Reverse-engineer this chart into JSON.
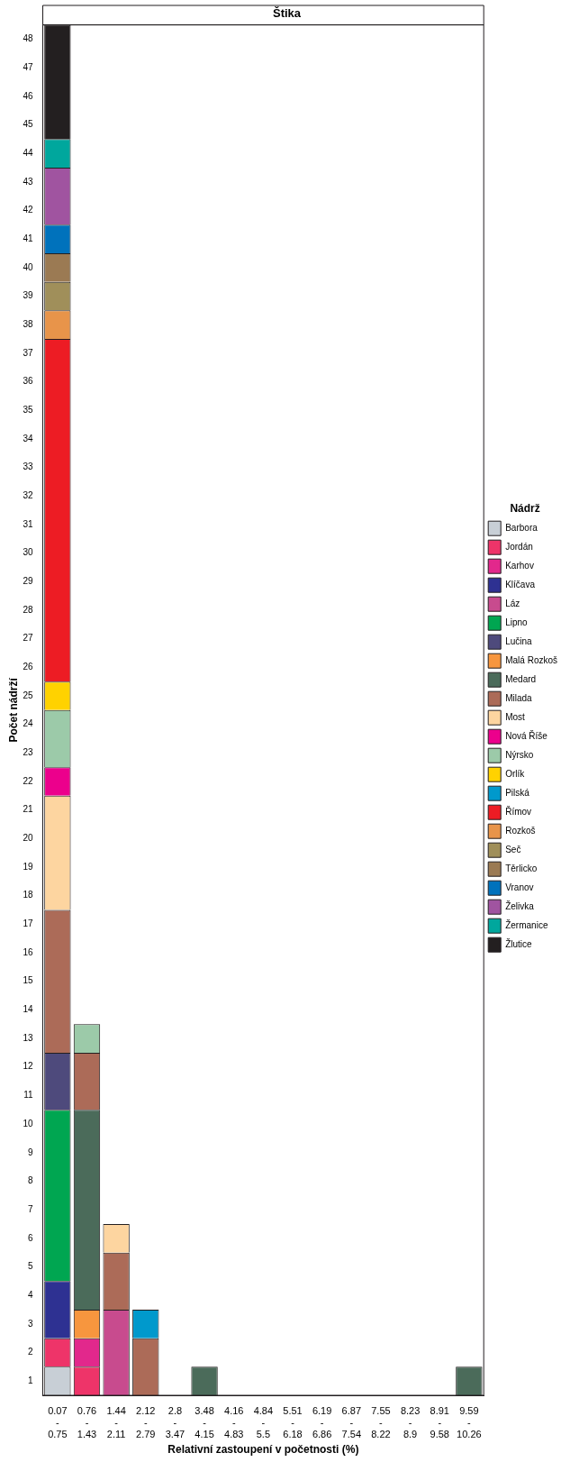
{
  "chart_data": {
    "type": "bar",
    "stacked": true,
    "title": "Štika",
    "xlabel": "Relativní zastoupení v početnosti (%)",
    "ylabel": "Počet nádrží",
    "legend_title": "Nádrž",
    "legend": "right",
    "grid": false,
    "categories": [
      "0.07 - 0.75",
      "0.76 - 1.43",
      "1.44 - 2.11",
      "2.12 - 2.79",
      "2.8 - 3.47",
      "3.48 - 4.15",
      "4.16 - 4.83",
      "4.84 - 5.5",
      "5.51 - 6.18",
      "6.19 - 6.86",
      "6.87 - 7.54",
      "7.55 - 8.22",
      "8.23 - 8.9",
      "8.91 - 9.58",
      "9.59 - 10.26"
    ],
    "ylim": [
      0,
      48
    ],
    "yticks": [
      {
        "value": 0.5,
        "label": "1"
      },
      {
        "value": 1.5,
        "label": "2"
      },
      {
        "value": 2.5,
        "label": "3"
      },
      {
        "value": 3.5,
        "label": "4"
      },
      {
        "value": 4.5,
        "label": "5"
      },
      {
        "value": 5.5,
        "label": "6"
      },
      {
        "value": 6.5,
        "label": "7"
      },
      {
        "value": 7.5,
        "label": "8"
      },
      {
        "value": 8.5,
        "label": "9"
      },
      {
        "value": 9.5,
        "label": "10"
      },
      {
        "value": 10.5,
        "label": "11"
      },
      {
        "value": 11.5,
        "label": "12"
      },
      {
        "value": 12.5,
        "label": "13"
      },
      {
        "value": 13.5,
        "label": "14"
      },
      {
        "value": 14.5,
        "label": "15"
      },
      {
        "value": 15.5,
        "label": "16"
      },
      {
        "value": 16.5,
        "label": "17"
      },
      {
        "value": 17.5,
        "label": "18"
      },
      {
        "value": 18.5,
        "label": "19"
      },
      {
        "value": 19.5,
        "label": "20"
      },
      {
        "value": 20.5,
        "label": "21"
      },
      {
        "value": 21.5,
        "label": "22"
      },
      {
        "value": 22.5,
        "label": "23"
      },
      {
        "value": 23.5,
        "label": "24"
      },
      {
        "value": 24.5,
        "label": "25"
      },
      {
        "value": 25.5,
        "label": "26"
      },
      {
        "value": 26.5,
        "label": "27"
      },
      {
        "value": 27.5,
        "label": "28"
      },
      {
        "value": 28.5,
        "label": "29"
      },
      {
        "value": 29.5,
        "label": "30"
      },
      {
        "value": 30.5,
        "label": "31"
      },
      {
        "value": 31.5,
        "label": "32"
      },
      {
        "value": 32.5,
        "label": "33"
      },
      {
        "value": 33.5,
        "label": "34"
      },
      {
        "value": 34.5,
        "label": "35"
      },
      {
        "value": 35.5,
        "label": "36"
      },
      {
        "value": 36.5,
        "label": "37"
      },
      {
        "value": 37.5,
        "label": "38"
      },
      {
        "value": 38.5,
        "label": "39"
      },
      {
        "value": 39.5,
        "label": "40"
      },
      {
        "value": 40.5,
        "label": "41"
      },
      {
        "value": 41.5,
        "label": "42"
      },
      {
        "value": 42.5,
        "label": "43"
      },
      {
        "value": 43.5,
        "label": "44"
      },
      {
        "value": 44.5,
        "label": "45"
      },
      {
        "value": 45.5,
        "label": "46"
      },
      {
        "value": 46.5,
        "label": "47"
      },
      {
        "value": 47.5,
        "label": "48"
      }
    ],
    "series": [
      {
        "name": "Barbora",
        "color": "#c8cfd6",
        "values": [
          1,
          null,
          null,
          null,
          null,
          null,
          null,
          null,
          null,
          null,
          null,
          null,
          null,
          null,
          null
        ]
      },
      {
        "name": "Jordán",
        "color": "#ee3469",
        "values": [
          1,
          1,
          null,
          null,
          null,
          null,
          null,
          null,
          null,
          null,
          null,
          null,
          null,
          null,
          null
        ]
      },
      {
        "name": "Karhov",
        "color": "#e2288c",
        "values": [
          null,
          1,
          null,
          null,
          null,
          null,
          null,
          null,
          null,
          null,
          null,
          null,
          null,
          null,
          null
        ]
      },
      {
        "name": "Klíčava",
        "color": "#2e3192",
        "values": [
          2,
          null,
          null,
          null,
          null,
          null,
          null,
          null,
          null,
          null,
          null,
          null,
          null,
          null,
          null
        ]
      },
      {
        "name": "Láz",
        "color": "#c84b8e",
        "values": [
          null,
          null,
          3,
          null,
          null,
          null,
          null,
          null,
          null,
          null,
          null,
          null,
          null,
          null,
          null
        ]
      },
      {
        "name": "Lipno",
        "color": "#00a651",
        "values": [
          6,
          null,
          null,
          null,
          null,
          null,
          null,
          null,
          null,
          null,
          null,
          null,
          null,
          null,
          null
        ]
      },
      {
        "name": "Lučina",
        "color": "#4e4a7c",
        "values": [
          2,
          null,
          null,
          null,
          null,
          null,
          null,
          null,
          null,
          null,
          null,
          null,
          null,
          null,
          null
        ]
      },
      {
        "name": "Malá Rozkoš",
        "color": "#f7963e",
        "values": [
          null,
          1,
          null,
          null,
          null,
          null,
          null,
          null,
          null,
          null,
          null,
          null,
          null,
          null,
          null
        ]
      },
      {
        "name": "Medard",
        "color": "#4b6b5a",
        "values": [
          null,
          7,
          null,
          null,
          null,
          1,
          null,
          null,
          null,
          null,
          null,
          null,
          null,
          null,
          1
        ]
      },
      {
        "name": "Milada",
        "color": "#ac6b58",
        "values": [
          5,
          2,
          2,
          2,
          null,
          null,
          null,
          null,
          null,
          null,
          null,
          null,
          null,
          null,
          null
        ]
      },
      {
        "name": "Most",
        "color": "#fdd5a0",
        "values": [
          4,
          null,
          1,
          null,
          null,
          null,
          null,
          null,
          null,
          null,
          null,
          null,
          null,
          null,
          null
        ]
      },
      {
        "name": "Nová Říše",
        "color": "#ec008c",
        "values": [
          1,
          null,
          null,
          null,
          null,
          null,
          null,
          null,
          null,
          null,
          null,
          null,
          null,
          null,
          null
        ]
      },
      {
        "name": "Nýrsko",
        "color": "#9ccaa9",
        "values": [
          2,
          1,
          null,
          null,
          null,
          null,
          null,
          null,
          null,
          null,
          null,
          null,
          null,
          null,
          null
        ]
      },
      {
        "name": "Orlík",
        "color": "#ffd200",
        "values": [
          1,
          null,
          null,
          null,
          null,
          null,
          null,
          null,
          null,
          null,
          null,
          null,
          null,
          null,
          null
        ]
      },
      {
        "name": "Pilská",
        "color": "#0099cc",
        "values": [
          null,
          null,
          null,
          1,
          null,
          null,
          null,
          null,
          null,
          null,
          null,
          null,
          null,
          null,
          null
        ]
      },
      {
        "name": "Římov",
        "color": "#ed1c24",
        "values": [
          12,
          null,
          null,
          null,
          null,
          null,
          null,
          null,
          null,
          null,
          null,
          null,
          null,
          null,
          null
        ]
      },
      {
        "name": "Rozkoš",
        "color": "#e8944a",
        "values": [
          1,
          null,
          null,
          null,
          null,
          null,
          null,
          null,
          null,
          null,
          null,
          null,
          null,
          null,
          null
        ]
      },
      {
        "name": "Seč",
        "color": "#a08f5a",
        "values": [
          1,
          null,
          null,
          null,
          null,
          null,
          null,
          null,
          null,
          null,
          null,
          null,
          null,
          null,
          null
        ]
      },
      {
        "name": "Těrlicko",
        "color": "#9b7a53",
        "values": [
          1,
          null,
          null,
          null,
          null,
          null,
          null,
          null,
          null,
          null,
          null,
          null,
          null,
          null,
          null
        ]
      },
      {
        "name": "Vranov",
        "color": "#0072bc",
        "values": [
          1,
          null,
          null,
          null,
          null,
          null,
          null,
          null,
          null,
          null,
          null,
          null,
          null,
          null,
          null
        ]
      },
      {
        "name": "Želivka",
        "color": "#a054a0",
        "values": [
          2,
          null,
          null,
          null,
          null,
          null,
          null,
          null,
          null,
          null,
          null,
          null,
          null,
          null,
          null
        ]
      },
      {
        "name": "Žermanice",
        "color": "#00a79d",
        "values": [
          1,
          null,
          null,
          null,
          null,
          null,
          null,
          null,
          null,
          null,
          null,
          null,
          null,
          null,
          null
        ]
      },
      {
        "name": "Žlutice",
        "color": "#231f20",
        "values": [
          4,
          null,
          null,
          null,
          null,
          null,
          null,
          null,
          null,
          null,
          null,
          null,
          null,
          null,
          null
        ]
      }
    ]
  }
}
